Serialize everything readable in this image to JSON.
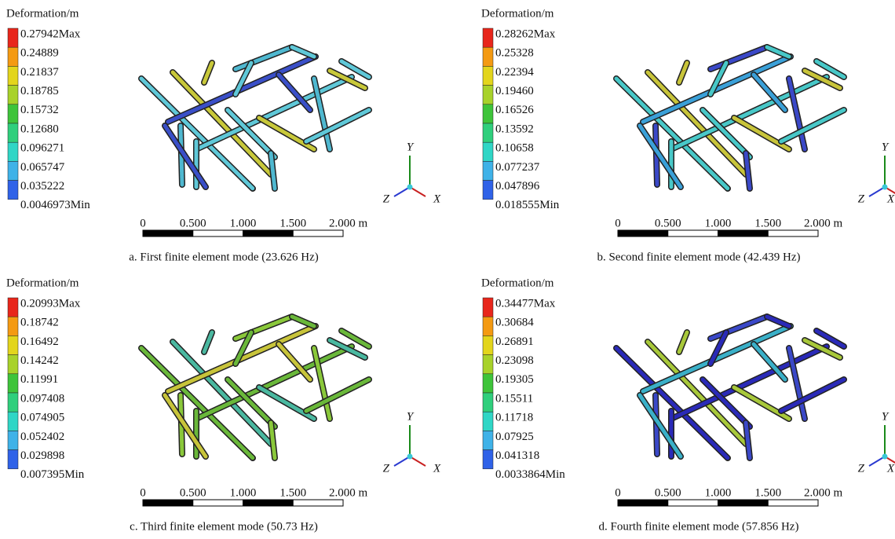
{
  "panels": [
    {
      "legend_title": "Deformation/m",
      "legend_labels": [
        "0.27942Max",
        "0.24889",
        "0.21837",
        "0.18785",
        "0.15732",
        "0.12680",
        "0.096271",
        "0.065747",
        "0.035222",
        "0.0046973Min"
      ],
      "scale_labels": [
        "0",
        "0.500",
        "1.000",
        "1.500",
        "2.000 m"
      ],
      "axes": [
        "Y",
        "Z",
        "X"
      ],
      "caption": "a. First finite element mode (23.626 Hz)"
    },
    {
      "legend_title": "Deformation/m",
      "legend_labels": [
        "0.28262Max",
        "0.25328",
        "0.22394",
        "0.19460",
        "0.16526",
        "0.13592",
        "0.10658",
        "0.077237",
        "0.047896",
        "0.018555Min"
      ],
      "scale_labels": [
        "0",
        "0.500",
        "1.000",
        "1.500",
        "2.000 m"
      ],
      "axes": [
        "Y",
        "Z",
        "X"
      ],
      "caption": "b. Second finite element mode (42.439 Hz)"
    },
    {
      "legend_title": "Deformation/m",
      "legend_labels": [
        "0.20993Max",
        "0.18742",
        "0.16492",
        "0.14242",
        "0.11991",
        "0.097408",
        "0.074905",
        "0.052402",
        "0.029898",
        "0.007395Min"
      ],
      "scale_labels": [
        "0",
        "0.500",
        "1.000",
        "1.500",
        "2.000 m"
      ],
      "axes": [
        "Y",
        "Z",
        "X"
      ],
      "caption": "c. Third finite element mode (50.73 Hz)"
    },
    {
      "legend_title": "Deformation/m",
      "legend_labels": [
        "0.34477Max",
        "0.30684",
        "0.26891",
        "0.23098",
        "0.19305",
        "0.15511",
        "0.11718",
        "0.07925",
        "0.041318",
        "0.0033864Min"
      ],
      "scale_labels": [
        "0",
        "0.500",
        "1.000",
        "1.500",
        "2.000 m"
      ],
      "axes": [
        "Y",
        "Z",
        "X"
      ],
      "caption": "d. Fourth finite element mode (57.856 Hz)"
    }
  ]
}
